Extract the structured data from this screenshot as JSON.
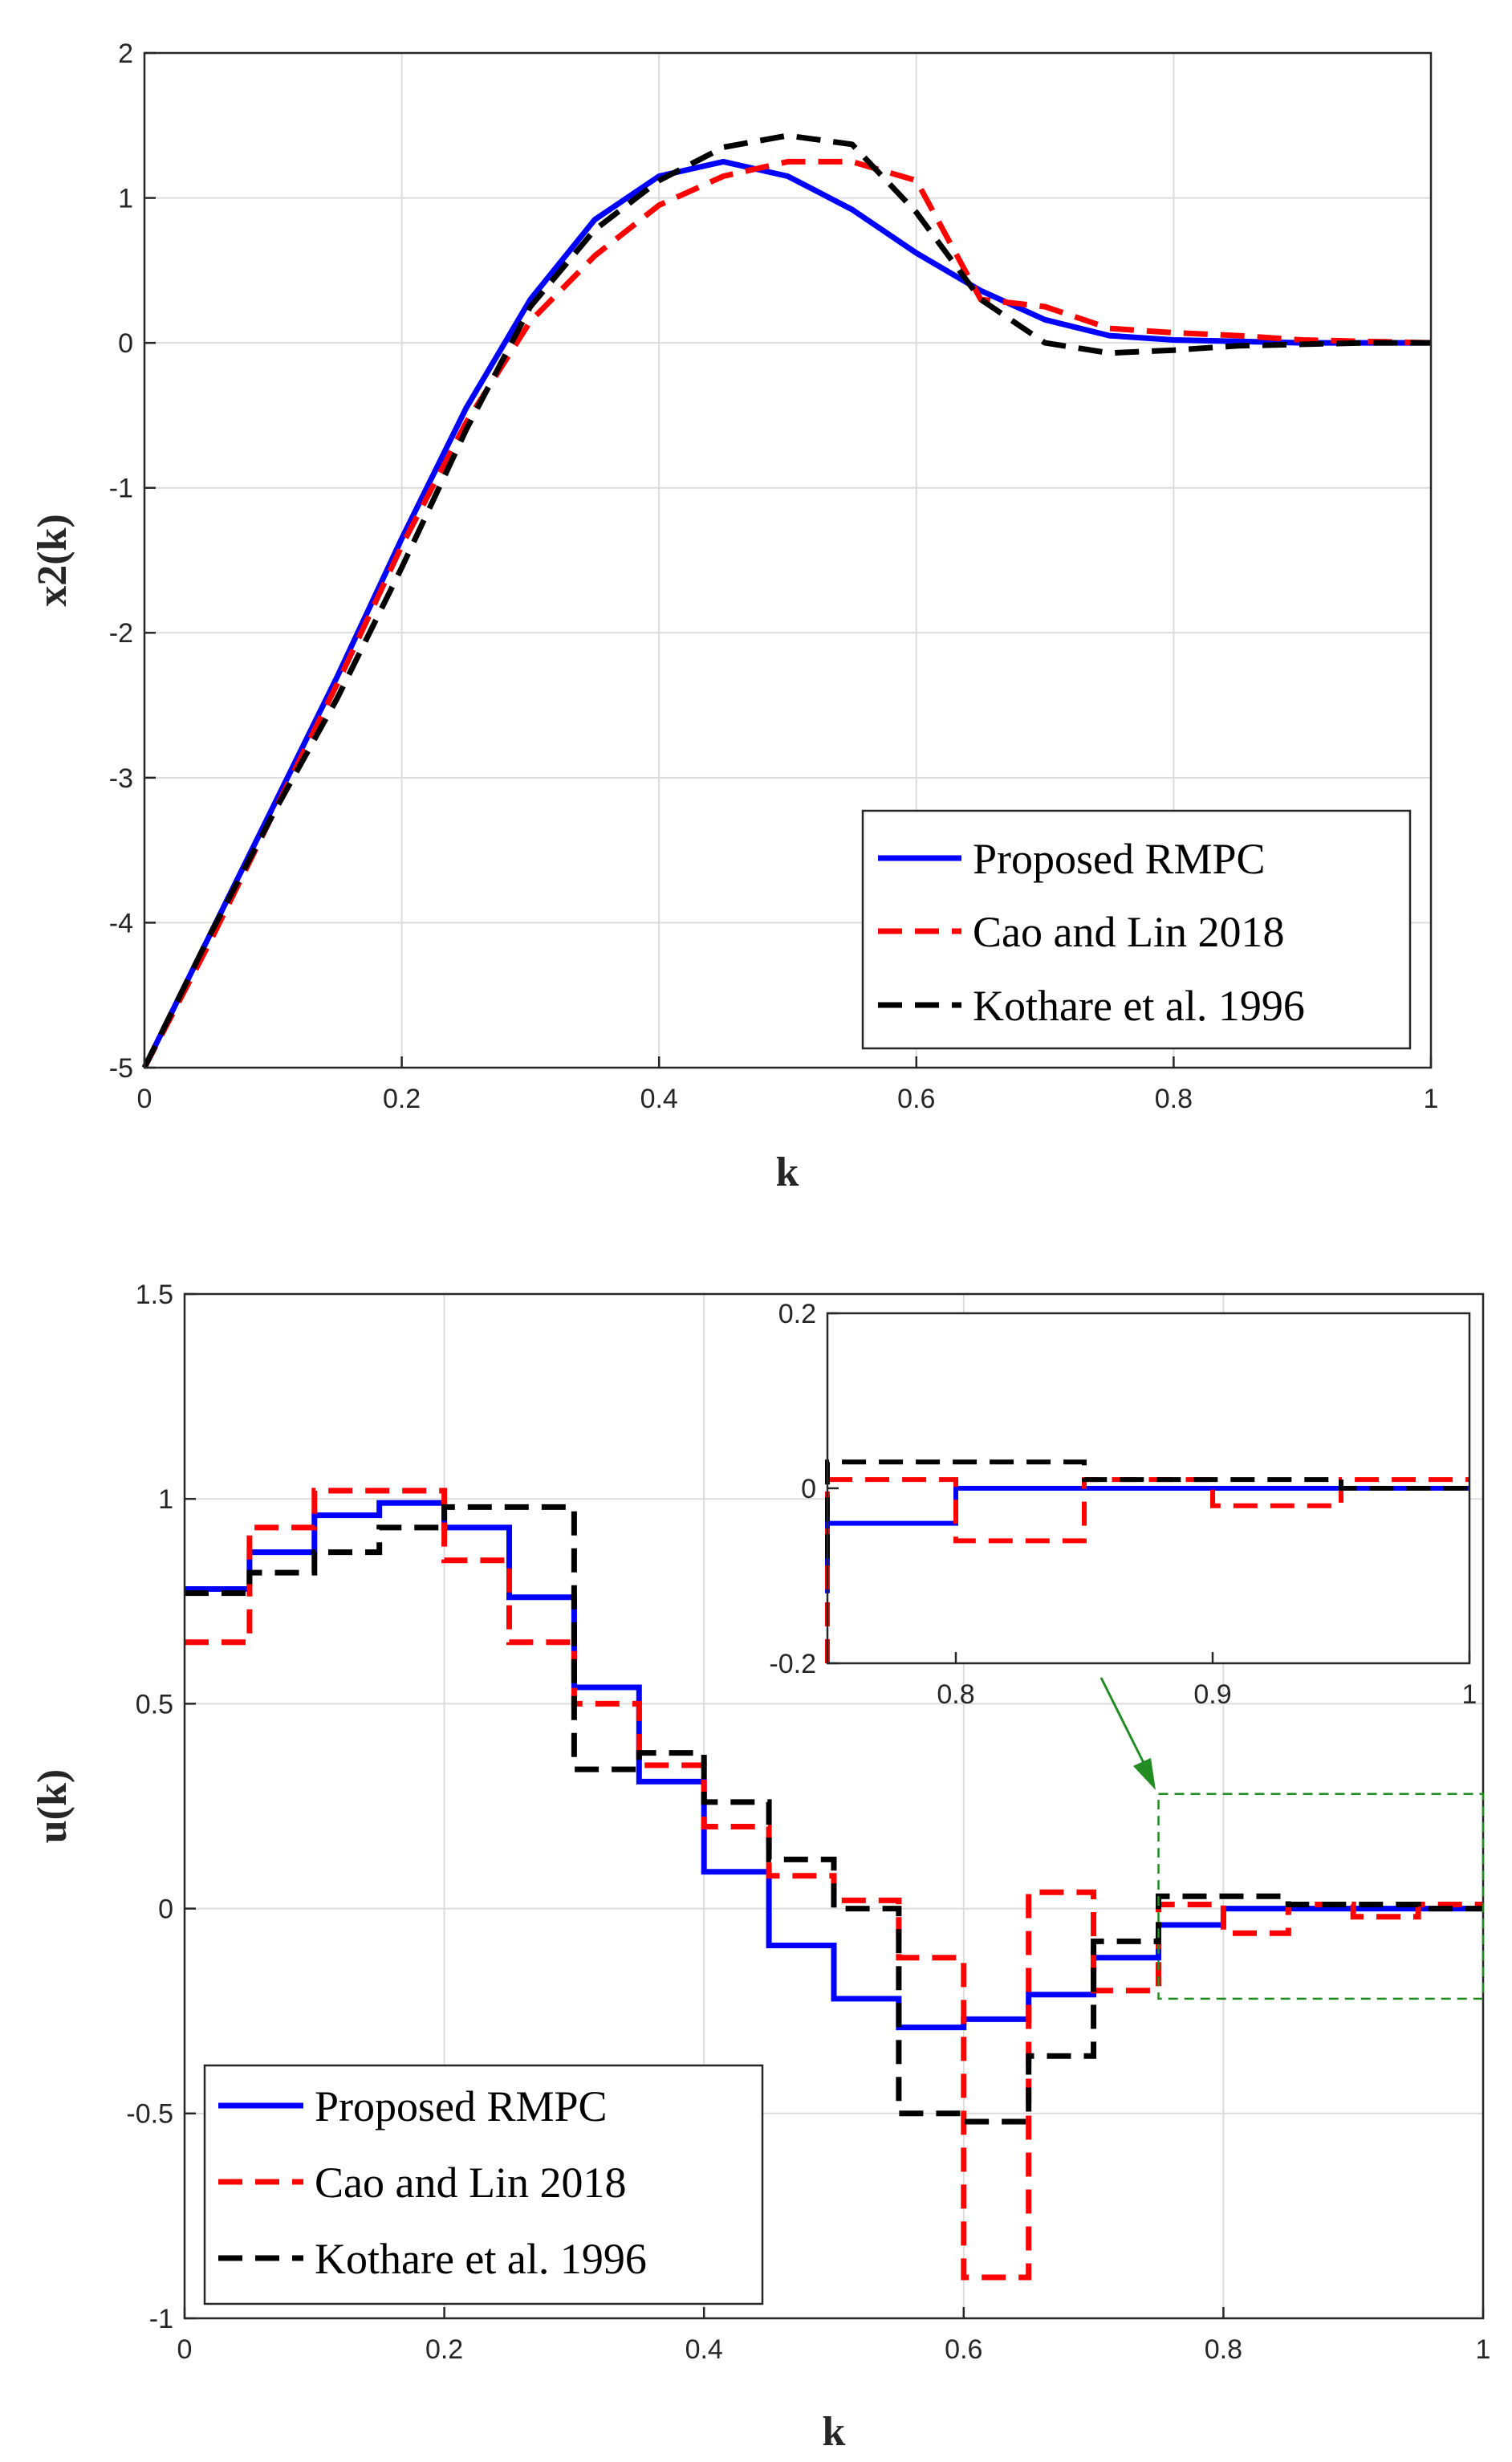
{
  "colors": {
    "proposed": "#0000ff",
    "cao": "#ff0000",
    "kothare": "#000000",
    "zoom_box": "#228b22"
  },
  "chart_data": [
    {
      "type": "line",
      "title": "",
      "xlabel": "k",
      "ylabel": "x2(k)",
      "xlim": [
        0,
        1
      ],
      "ylim": [
        -5,
        2
      ],
      "grid": true,
      "legend_position": "bottom-right",
      "xticks": [
        "0",
        "0.2",
        "0.4",
        "0.6",
        "0.8",
        "1"
      ],
      "yticks": [
        "-5",
        "-4",
        "-3",
        "-2",
        "-1",
        "0",
        "1",
        "2"
      ],
      "series": [
        {
          "name": "Proposed RMPC",
          "style": "solid",
          "x": [
            0,
            0.05,
            0.1,
            0.15,
            0.2,
            0.25,
            0.3,
            0.35,
            0.4,
            0.45,
            0.5,
            0.55,
            0.6,
            0.65,
            0.7,
            0.75,
            0.8,
            0.85,
            0.9,
            0.95,
            1
          ],
          "y": [
            -5,
            -4.1,
            -3.2,
            -2.3,
            -1.35,
            -0.45,
            0.3,
            0.85,
            1.15,
            1.25,
            1.15,
            0.92,
            0.62,
            0.36,
            0.16,
            0.05,
            0.02,
            0.01,
            0.0,
            0.0,
            0.0
          ]
        },
        {
          "name": "Cao and Lin 2018",
          "style": "dashed",
          "x": [
            0,
            0.05,
            0.1,
            0.15,
            0.2,
            0.25,
            0.3,
            0.35,
            0.4,
            0.45,
            0.5,
            0.55,
            0.6,
            0.65,
            0.7,
            0.75,
            0.8,
            0.85,
            0.9,
            0.95,
            1
          ],
          "y": [
            -5,
            -4.15,
            -3.25,
            -2.35,
            -1.4,
            -0.55,
            0.15,
            0.6,
            0.95,
            1.15,
            1.25,
            1.25,
            1.12,
            0.3,
            0.25,
            0.1,
            0.07,
            0.05,
            0.02,
            0.01,
            0.0
          ]
        },
        {
          "name": "Kothare et al. 1996",
          "style": "dashed",
          "x": [
            0,
            0.05,
            0.1,
            0.15,
            0.2,
            0.25,
            0.3,
            0.35,
            0.4,
            0.45,
            0.5,
            0.55,
            0.6,
            0.65,
            0.7,
            0.75,
            0.8,
            0.85,
            0.9,
            0.95,
            1
          ],
          "y": [
            -5,
            -4.1,
            -3.25,
            -2.45,
            -1.55,
            -0.6,
            0.25,
            0.78,
            1.12,
            1.35,
            1.43,
            1.37,
            0.9,
            0.3,
            0.0,
            -0.07,
            -0.05,
            -0.02,
            -0.01,
            0.0,
            0.0
          ]
        }
      ]
    },
    {
      "type": "line",
      "title": "",
      "xlabel": "k",
      "ylabel": "u(k)",
      "xlim": [
        0,
        1
      ],
      "ylim": [
        -1,
        1.5
      ],
      "grid": true,
      "legend_position": "bottom-left",
      "xticks": [
        "0",
        "0.2",
        "0.4",
        "0.6",
        "0.8",
        "1"
      ],
      "yticks": [
        "-1",
        "-0.5",
        "0",
        "0.5",
        "1",
        "1.5"
      ],
      "steps": true,
      "step_x": [
        0,
        0.05,
        0.1,
        0.15,
        0.2,
        0.25,
        0.3,
        0.35,
        0.4,
        0.45,
        0.5,
        0.55,
        0.6,
        0.65,
        0.7,
        0.75,
        0.8,
        0.85,
        0.9,
        0.95
      ],
      "series": [
        {
          "name": "Proposed RMPC",
          "style": "solid",
          "values": [
            0.78,
            0.87,
            0.96,
            0.99,
            0.93,
            0.76,
            0.54,
            0.31,
            0.09,
            -0.09,
            -0.22,
            -0.29,
            -0.27,
            -0.21,
            -0.12,
            -0.04,
            0.0,
            0.0,
            0.0,
            0.0
          ]
        },
        {
          "name": "Cao and Lin 2018",
          "style": "dashed",
          "values": [
            0.65,
            0.93,
            1.02,
            1.02,
            0.85,
            0.65,
            0.5,
            0.35,
            0.2,
            0.08,
            0.02,
            -0.12,
            -0.9,
            0.04,
            -0.2,
            0.01,
            -0.06,
            0.01,
            -0.02,
            0.01
          ]
        },
        {
          "name": "Kothare et al. 1996",
          "style": "dashed",
          "values": [
            0.77,
            0.82,
            0.87,
            0.93,
            0.98,
            0.98,
            0.34,
            0.38,
            0.26,
            0.12,
            0.0,
            -0.5,
            -0.52,
            -0.36,
            -0.08,
            0.03,
            0.03,
            0.01,
            0.01,
            0.0
          ]
        }
      ],
      "inset": {
        "xlim": [
          0.75,
          1
        ],
        "ylim": [
          -0.2,
          0.2
        ],
        "xticks": [
          "0.8",
          "0.9",
          "1"
        ],
        "yticks": [
          "-0.2",
          "0",
          "0.2"
        ],
        "zoom_region": {
          "xlim": [
            0.75,
            1
          ],
          "ylim": [
            -0.22,
            0.28
          ]
        }
      }
    }
  ]
}
